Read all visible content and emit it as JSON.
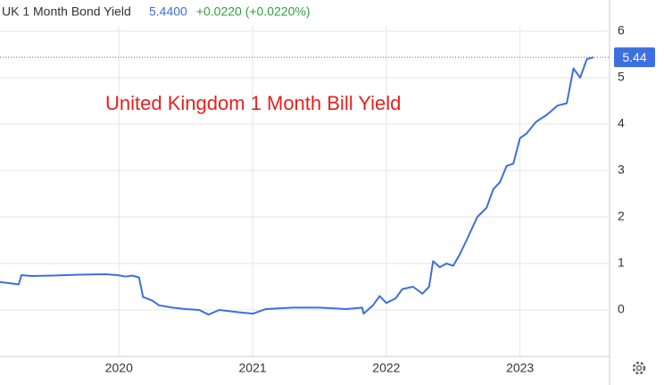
{
  "chart_data": {
    "type": "line",
    "price": "5.4400",
    "change": "+0.0220 (+0.0220%)",
    "annotation": "United Kingdom 1 Month Bill Yield",
    "last_value": 5.44,
    "x": [
      2019.11,
      2019.2,
      2019.25,
      2019.27,
      2019.35,
      2019.5,
      2019.7,
      2019.9,
      2019.99,
      2020.05,
      2020.1,
      2020.15,
      2020.18,
      2020.25,
      2020.3,
      2020.4,
      2020.5,
      2020.6,
      2020.67,
      2020.75,
      2020.9,
      2021.0,
      2021.1,
      2021.3,
      2021.5,
      2021.7,
      2021.82,
      2021.83,
      2021.9,
      2021.95,
      2022.0,
      2022.07,
      2022.12,
      2022.2,
      2022.27,
      2022.32,
      2022.35,
      2022.4,
      2022.45,
      2022.5,
      2022.55,
      2022.6,
      2022.68,
      2022.75,
      2022.8,
      2022.85,
      2022.9,
      2022.95,
      2023.0,
      2023.05,
      2023.12,
      2023.2,
      2023.28,
      2023.35,
      2023.4,
      2023.45,
      2023.5,
      2023.55
    ],
    "series": [
      {
        "name": "UK 1 Month Bond Yield",
        "color": "#3c6fe0",
        "values": [
          0.6,
          0.57,
          0.55,
          0.75,
          0.73,
          0.74,
          0.76,
          0.77,
          0.75,
          0.72,
          0.74,
          0.7,
          0.28,
          0.2,
          0.1,
          0.05,
          0.02,
          0.0,
          -0.1,
          0.0,
          -0.05,
          -0.08,
          0.02,
          0.05,
          0.05,
          0.02,
          0.05,
          -0.08,
          0.1,
          0.3,
          0.15,
          0.25,
          0.45,
          0.5,
          0.35,
          0.5,
          1.05,
          0.92,
          1.0,
          0.95,
          1.2,
          1.5,
          2.0,
          2.2,
          2.6,
          2.75,
          3.1,
          3.15,
          3.7,
          3.8,
          4.05,
          4.2,
          4.4,
          4.45,
          5.2,
          5.0,
          5.4,
          5.44
        ]
      }
    ],
    "xlim": [
      2019.11,
      2023.67
    ],
    "xticks": [
      2020,
      2021,
      2022,
      2023
    ],
    "ylim": [
      -1,
      6.5
    ],
    "yticks": [
      0,
      1,
      2,
      3,
      4,
      5,
      6
    ],
    "grid": true
  }
}
